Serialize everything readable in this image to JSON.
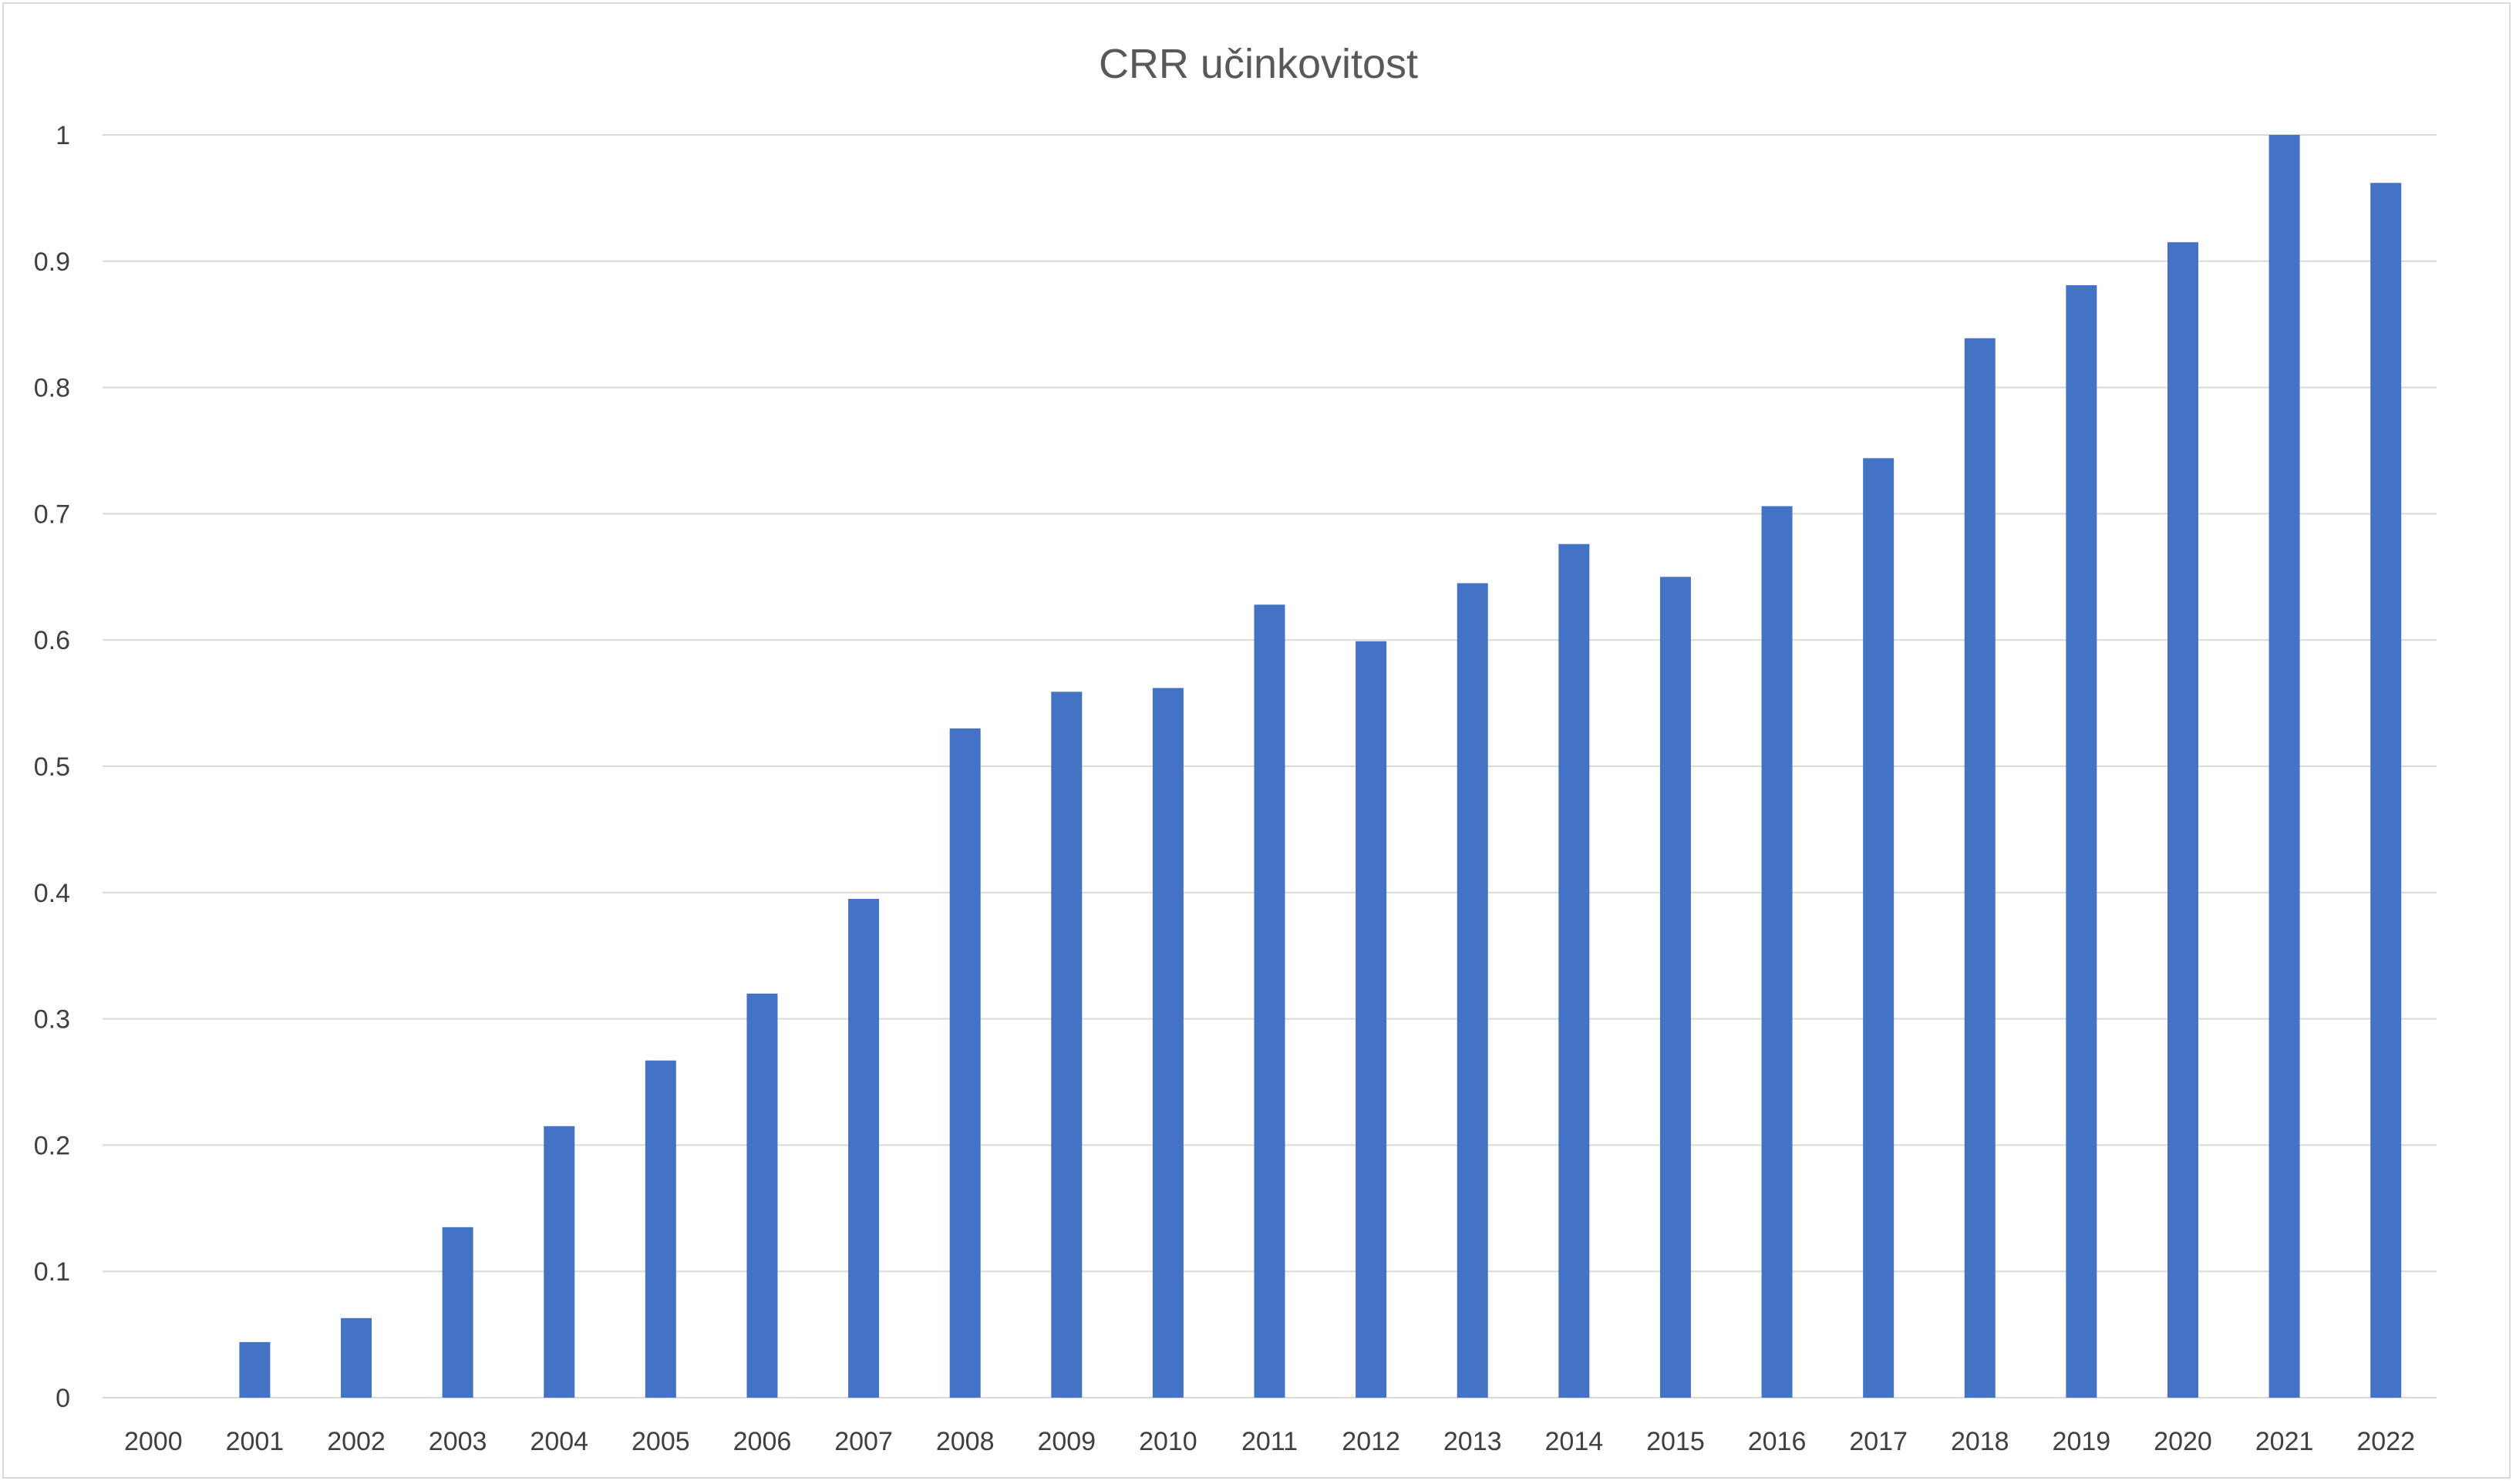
{
  "chart_data": {
    "type": "bar",
    "title": "CRR učinkovitost",
    "xlabel": "",
    "ylabel": "",
    "categories": [
      "2000",
      "2001",
      "2002",
      "2003",
      "2004",
      "2005",
      "2006",
      "2007",
      "2008",
      "2009",
      "2010",
      "2011",
      "2012",
      "2013",
      "2014",
      "2015",
      "2016",
      "2017",
      "2018",
      "2019",
      "2020",
      "2021",
      "2022"
    ],
    "values": [
      0,
      0.044,
      0.063,
      0.135,
      0.215,
      0.267,
      0.32,
      0.395,
      0.53,
      0.559,
      0.562,
      0.628,
      0.599,
      0.645,
      0.676,
      0.65,
      0.706,
      0.744,
      0.839,
      0.881,
      0.915,
      1.0,
      0.962
    ],
    "ylim": [
      0,
      1
    ],
    "yticks": [
      0,
      0.1,
      0.2,
      0.3,
      0.4,
      0.5,
      0.6,
      0.7,
      0.8,
      0.9,
      1
    ],
    "ytick_labels": [
      "0",
      "0.1",
      "0.2",
      "0.3",
      "0.4",
      "0.5",
      "0.6",
      "0.7",
      "0.8",
      "0.9",
      "1"
    ],
    "grid": true,
    "legend": "none",
    "bar_color": "#4472c4",
    "grid_color": "#d9d9d9"
  }
}
